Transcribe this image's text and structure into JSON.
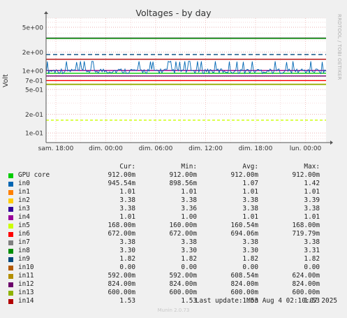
{
  "header": {
    "title": "Voltages - by day",
    "side_label": "RRDTOOL / TOBI OETIKER"
  },
  "footer": {
    "last_update": "Last update: Mon Aug  4 02:10:07 2025",
    "brand": "Munin 2.0.73"
  },
  "legend": {
    "headers": [
      "Cur:",
      "Min:",
      "Avg:",
      "Max:"
    ],
    "rows": [
      {
        "name": "GPU core",
        "color": "#00cc00",
        "cur": "912.00m",
        "min": "912.00m",
        "avg": "912.00m",
        "max": "912.00m"
      },
      {
        "name": "in0",
        "color": "#0066b3",
        "cur": "945.54m",
        "min": "898.56m",
        "avg": "1.07",
        "max": "1.42"
      },
      {
        "name": "in1",
        "color": "#ff8000",
        "cur": "1.01",
        "min": "1.01",
        "avg": "1.01",
        "max": "1.01"
      },
      {
        "name": "in2",
        "color": "#ffcc00",
        "cur": "3.38",
        "min": "3.38",
        "avg": "3.38",
        "max": "3.39"
      },
      {
        "name": "in3",
        "color": "#330099",
        "cur": "3.38",
        "min": "3.36",
        "avg": "3.38",
        "max": "3.38"
      },
      {
        "name": "in4",
        "color": "#990099",
        "cur": "1.01",
        "min": "1.00",
        "avg": "1.01",
        "max": "1.01"
      },
      {
        "name": "in5",
        "color": "#ccff00",
        "cur": "168.00m",
        "min": "160.00m",
        "avg": "160.54m",
        "max": "168.00m"
      },
      {
        "name": "in6",
        "color": "#ff0000",
        "cur": "672.00m",
        "min": "672.00m",
        "avg": "694.06m",
        "max": "719.79m"
      },
      {
        "name": "in7",
        "color": "#808080",
        "cur": "3.38",
        "min": "3.38",
        "avg": "3.38",
        "max": "3.38"
      },
      {
        "name": "in8",
        "color": "#008f00",
        "cur": "3.30",
        "min": "3.30",
        "avg": "3.30",
        "max": "3.31"
      },
      {
        "name": "in9",
        "color": "#00487d",
        "cur": "1.82",
        "min": "1.82",
        "avg": "1.82",
        "max": "1.82"
      },
      {
        "name": "in10",
        "color": "#b35a00",
        "cur": "0.00",
        "min": "0.00",
        "avg": "0.00",
        "max": "0.00"
      },
      {
        "name": "in11",
        "color": "#b38f00",
        "cur": "592.00m",
        "min": "592.00m",
        "avg": "608.54m",
        "max": "624.00m"
      },
      {
        "name": "in12",
        "color": "#6b006b",
        "cur": "824.00m",
        "min": "824.00m",
        "avg": "824.00m",
        "max": "824.00m"
      },
      {
        "name": "in13",
        "color": "#8fb300",
        "cur": "600.00m",
        "min": "600.00m",
        "avg": "600.00m",
        "max": "600.00m"
      },
      {
        "name": "in14",
        "color": "#b30000",
        "cur": "1.53",
        "min": "1.53",
        "avg": "1.53",
        "max": "1.53"
      }
    ]
  },
  "chart_data": {
    "type": "line",
    "title": "Voltages - by day",
    "ylabel": "Volt",
    "yscale": "log",
    "ylim": [
      0.07,
      7
    ],
    "grid": true,
    "legend_placement": "bottom",
    "y_ticks": [
      {
        "value": 5,
        "label": "5e+00"
      },
      {
        "value": 2,
        "label": "2e+00"
      },
      {
        "value": 1,
        "label": "1e+00"
      },
      {
        "value": 0.7,
        "label": "7e-01"
      },
      {
        "value": 0.5,
        "label": "5e-01"
      },
      {
        "value": 0.2,
        "label": "2e-01"
      },
      {
        "value": 0.1,
        "label": "1e-01"
      }
    ],
    "x_ticks": [
      "sam. 18:00",
      "dim. 00:00",
      "dim. 06:00",
      "dim. 12:00",
      "dim. 18:00",
      "lun. 00:00"
    ],
    "series": [
      {
        "name": "in2",
        "color": "#ffcc00",
        "value": 3.38
      },
      {
        "name": "in3",
        "color": "#330099",
        "value": 3.38
      },
      {
        "name": "in7",
        "color": "#808080",
        "value": 3.38
      },
      {
        "name": "in8",
        "color": "#008f00",
        "value": 3.3
      },
      {
        "name": "in9",
        "color": "#00487d",
        "value": 1.82
      },
      {
        "name": "in14",
        "color": "#b30000",
        "value": 1.53
      },
      {
        "name": "in1",
        "color": "#ff8000",
        "value": 1.01
      },
      {
        "name": "in4",
        "color": "#990099",
        "value": 1.01
      },
      {
        "name": "GPU core",
        "color": "#00cc00",
        "value": 0.912
      },
      {
        "name": "in12",
        "color": "#6b006b",
        "value": 0.824
      },
      {
        "name": "in6",
        "color": "#ff0000",
        "value": 0.694
      },
      {
        "name": "in11",
        "color": "#b38f00",
        "value": 0.6085
      },
      {
        "name": "in13",
        "color": "#8fb300",
        "value": 0.6
      },
      {
        "name": "in5",
        "color": "#ccff00",
        "value": 0.1605
      },
      {
        "name": "in0",
        "color": "#0066b3",
        "value": 1.07,
        "min": 0.8986,
        "max": 1.42
      }
    ]
  }
}
